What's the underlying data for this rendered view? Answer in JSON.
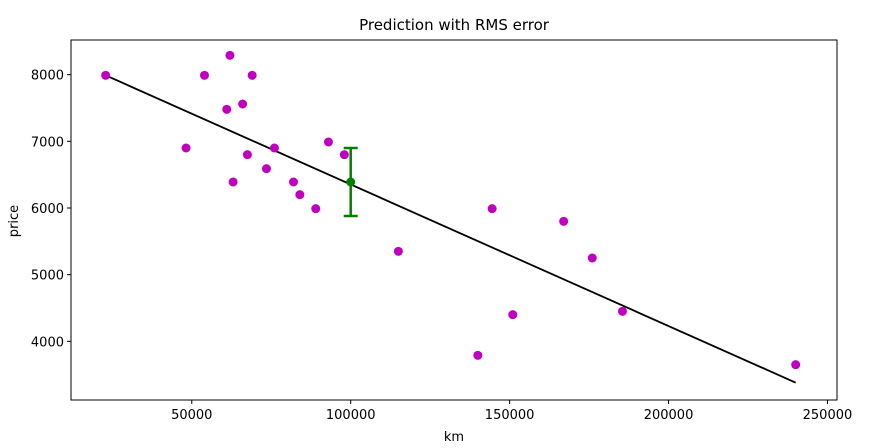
{
  "chart_data": {
    "type": "scatter",
    "title": "Prediction with RMS error",
    "xlabel": "km",
    "ylabel": "price",
    "xlim": [
      12000,
      253000
    ],
    "ylim": [
      3120,
      8520
    ],
    "x_ticks": [
      50000,
      100000,
      150000,
      200000,
      250000
    ],
    "x_tick_labels": [
      "50000",
      "100000",
      "150000",
      "200000",
      "250000"
    ],
    "y_ticks": [
      4000,
      5000,
      6000,
      7000,
      8000
    ],
    "y_tick_labels": [
      "4000",
      "5000",
      "6000",
      "7000",
      "8000"
    ],
    "grid": false,
    "series": [
      {
        "type": "scatter",
        "color": "#bf00bf",
        "points": [
          [
            22900,
            7990
          ],
          [
            48200,
            6900
          ],
          [
            54000,
            7990
          ],
          [
            61000,
            7480
          ],
          [
            62000,
            8290
          ],
          [
            63000,
            6390
          ],
          [
            66000,
            7560
          ],
          [
            67500,
            6800
          ],
          [
            69000,
            7990
          ],
          [
            73500,
            6590
          ],
          [
            76000,
            6900
          ],
          [
            82000,
            6390
          ],
          [
            84000,
            6200
          ],
          [
            89000,
            5990
          ],
          [
            93000,
            6990
          ],
          [
            98000,
            6800
          ],
          [
            115000,
            5350
          ],
          [
            140000,
            3790
          ],
          [
            144500,
            5990
          ],
          [
            151000,
            4400
          ],
          [
            167000,
            5800
          ],
          [
            176000,
            5250
          ],
          [
            185500,
            4450
          ],
          [
            240000,
            3650
          ]
        ]
      },
      {
        "type": "line",
        "color": "#000000",
        "points": [
          [
            22900,
            7990
          ],
          [
            240000,
            3380
          ]
        ]
      },
      {
        "type": "errorbar",
        "color": "#008000",
        "x": 100000,
        "y": 6390,
        "yerr": 510
      }
    ]
  }
}
